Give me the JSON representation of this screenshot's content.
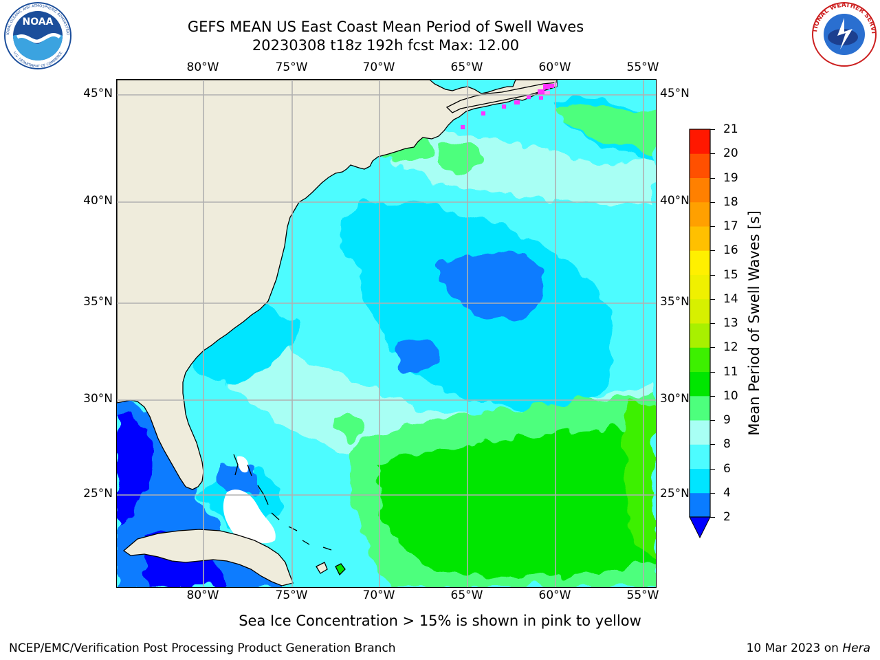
{
  "title_line1": "GEFS MEAN US East Coast Mean Period of Swell Waves",
  "title_line2": "20230308 t18z 192h fcst   Max: 12.00",
  "map": {
    "lon_ticks": [
      "80°W",
      "75°W",
      "70°W",
      "65°W",
      "60°W",
      "55°W"
    ],
    "lat_ticks": [
      "45°N",
      "40°N",
      "35°N",
      "30°N",
      "25°N"
    ],
    "lon_range": [
      -85,
      -54.5
    ],
    "lat_range": [
      20,
      46
    ],
    "land_color": "#efecdc",
    "grid_color": "#b0b0b0"
  },
  "colorbar": {
    "label": "Mean Period of Swell Waves [s]",
    "ticks": [
      "2",
      "4",
      "6",
      "8",
      "9",
      "10",
      "11",
      "12",
      "13",
      "14",
      "15",
      "16",
      "17",
      "18",
      "19",
      "20",
      "21"
    ],
    "bins": [
      {
        "from": 2,
        "to": 4,
        "color": "#0a7cff"
      },
      {
        "from": 4,
        "to": 6,
        "color": "#00e5ff"
      },
      {
        "from": 6,
        "to": 8,
        "color": "#4dfcff"
      },
      {
        "from": 8,
        "to": 9,
        "color": "#a8fff4"
      },
      {
        "from": 9,
        "to": 10,
        "color": "#4dff7d"
      },
      {
        "from": 10,
        "to": 11,
        "color": "#00e600"
      },
      {
        "from": 11,
        "to": 12,
        "color": "#3df000"
      },
      {
        "from": 12,
        "to": 13,
        "color": "#a8f000"
      },
      {
        "from": 13,
        "to": 14,
        "color": "#d7f000"
      },
      {
        "from": 14,
        "to": 15,
        "color": "#f0f000"
      },
      {
        "from": 15,
        "to": 16,
        "color": "#fff000"
      },
      {
        "from": 16,
        "to": 17,
        "color": "#ffc000"
      },
      {
        "from": 17,
        "to": 18,
        "color": "#ffa000"
      },
      {
        "from": 18,
        "to": 19,
        "color": "#ff8000"
      },
      {
        "from": 19,
        "to": 20,
        "color": "#ff5000"
      },
      {
        "from": 20,
        "to": 21,
        "color": "#ff1800"
      }
    ],
    "under_color": "#0000ff"
  },
  "seaice_note": "Sea Ice Concentration > 15% is shown in pink to yellow",
  "footer_left": "NCEP/EMC/Verification Post Processing Product Generation Branch",
  "footer_date": "10 Mar 2023 on",
  "footer_machine": "Hera",
  "logos": {
    "noaa_text": "NOAA",
    "noaa_ring": "NATIONAL OCEANIC AND ATMOSPHERIC ADMINISTRATION",
    "noaa_ring_bottom": "U.S. DEPARTMENT OF COMMERCE",
    "nws_ring": "NATIONAL WEATHER SERVICE"
  }
}
